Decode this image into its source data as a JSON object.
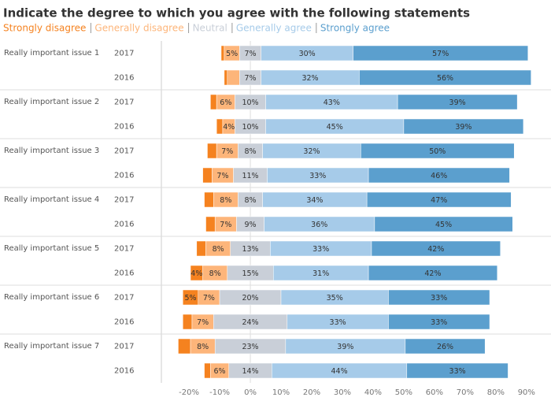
{
  "chart_data": {
    "type": "diverging-bar",
    "title": "Indicate the degree to which you agree with the following statements",
    "groups": [
      "Really important issue 1",
      "Really important issue 2",
      "Really important issue 3",
      "Really important issue 4",
      "Really important issue 5",
      "Really important issue 6",
      "Really important issue 7"
    ],
    "categories": [
      "2017",
      "2016",
      "2017",
      "2016",
      "2017",
      "2016",
      "2017",
      "2016",
      "2017",
      "2016",
      "2017",
      "2016",
      "2017",
      "2016"
    ],
    "series": [
      {
        "name": "Strongly disagree",
        "color": "#f5821f",
        "side": "negative",
        "values": [
          1,
          1,
          2,
          2,
          3,
          3,
          3,
          3,
          3,
          4,
          5,
          3,
          4,
          2
        ],
        "value_labels": [
          null,
          null,
          null,
          null,
          null,
          null,
          null,
          null,
          null,
          "4%",
          "5%",
          null,
          null,
          null
        ]
      },
      {
        "name": "Generally disagree",
        "color": "#fdb57a",
        "side": "negative",
        "values": [
          5,
          4,
          6,
          4,
          7,
          7,
          8,
          7,
          8,
          8,
          7,
          7,
          8,
          6
        ],
        "value_labels": [
          "5%",
          null,
          "6%",
          "4%",
          "7%",
          "7%",
          "8%",
          "7%",
          "8%",
          "8%",
          "7%",
          "7%",
          "8%",
          "6%"
        ]
      },
      {
        "name": "Neutral",
        "color": "#c9cfd8",
        "side": "center",
        "values": [
          7,
          7,
          10,
          10,
          8,
          11,
          8,
          9,
          13,
          15,
          20,
          24,
          23,
          14
        ],
        "value_labels": [
          "7%",
          "7%",
          "10%",
          "10%",
          "8%",
          "11%",
          "8%",
          "9%",
          "13%",
          "15%",
          "20%",
          "24%",
          "23%",
          "14%"
        ]
      },
      {
        "name": "Generally agree",
        "color": "#a6cbe9",
        "side": "positive",
        "values": [
          30,
          32,
          43,
          45,
          32,
          33,
          34,
          36,
          33,
          31,
          35,
          33,
          39,
          44
        ],
        "value_labels": [
          "30%",
          "32%",
          "43%",
          "45%",
          "32%",
          "33%",
          "34%",
          "36%",
          "33%",
          "31%",
          "35%",
          "33%",
          "39%",
          "44%"
        ]
      },
      {
        "name": "Strongly agree",
        "color": "#5b9fce",
        "side": "positive",
        "values": [
          57,
          56,
          39,
          39,
          50,
          46,
          47,
          45,
          42,
          42,
          33,
          33,
          26,
          33
        ],
        "value_labels": [
          "57%",
          "56%",
          "39%",
          "39%",
          "50%",
          "46%",
          "47%",
          "45%",
          "42%",
          "42%",
          "33%",
          "33%",
          "26%",
          "33%"
        ]
      }
    ],
    "xlim": [
      -29,
      98
    ],
    "xticks": [
      {
        "value": -20,
        "label": "-20%"
      },
      {
        "value": -10,
        "label": "-10%"
      },
      {
        "value": 0,
        "label": "0%"
      },
      {
        "value": 10,
        "label": "10%"
      },
      {
        "value": 20,
        "label": "20%"
      },
      {
        "value": 30,
        "label": "30%"
      },
      {
        "value": 40,
        "label": "40%"
      },
      {
        "value": 50,
        "label": "50%"
      },
      {
        "value": 60,
        "label": "60%"
      },
      {
        "value": 70,
        "label": "70%"
      },
      {
        "value": 80,
        "label": "80%"
      },
      {
        "value": 90,
        "label": "90%"
      }
    ]
  }
}
